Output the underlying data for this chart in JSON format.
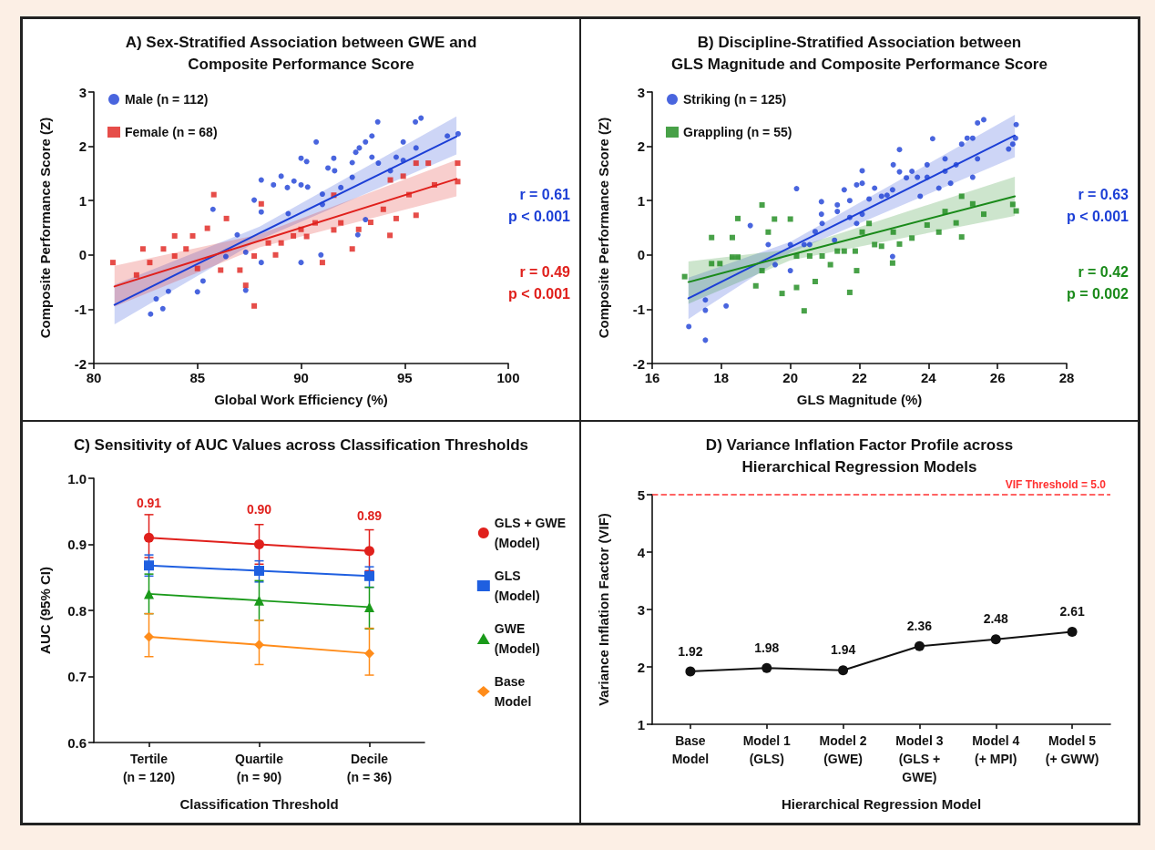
{
  "chart_data": [
    {
      "type": "scatter",
      "title": "A) Sex-Stratified Association between GWE and\nComposite Performance Score",
      "xlabel": "Global Work Efficiency (%)",
      "ylabel": "Composite Performance Score (Z)",
      "xlim": [
        80,
        100
      ],
      "xticks": [
        80,
        85,
        90,
        95,
        100
      ],
      "ylim": [
        -2,
        3
      ],
      "yticks": [
        -2,
        -1,
        0,
        1,
        2,
        3
      ],
      "legend": "top left",
      "annotations": [
        "r = 0.61\np < 0.001",
        "r = 0.49\np < 0.001"
      ],
      "series": [
        {
          "name": "Male (n = 112)",
          "color": "#1c3fd6",
          "marker": "circle",
          "x": [
            82.74,
            83.01,
            83.33,
            83.6,
            85.0,
            85.27,
            85.75,
            87.33,
            87.74,
            88.08,
            88.67,
            89.04,
            89.34,
            89.66,
            90.0,
            90.27,
            90.0,
            90.32,
            90.73,
            91.03,
            91.3,
            91.58,
            91.62,
            91.92,
            92.47,
            92.47,
            92.64,
            92.81,
            93.11,
            93.42,
            93.7,
            93.42,
            93.73,
            94.31,
            94.59,
            94.93,
            94.93,
            95.52,
            95.79,
            95.55,
            97.06,
            97.58,
            93.11,
            92.74,
            90.96,
            90.0,
            88.08,
            88.08,
            87.33,
            86.37,
            86.92,
            89.38,
            91.03
          ],
          "values": [
            -1.09,
            -0.81,
            -0.99,
            -0.67,
            -0.68,
            -0.48,
            0.84,
            -0.65,
            1.01,
            1.38,
            1.29,
            1.45,
            1.24,
            1.36,
            1.78,
            1.72,
            1.29,
            1.25,
            2.08,
            1.12,
            1.6,
            1.78,
            1.55,
            1.24,
            1.7,
            1.43,
            1.89,
            1.97,
            2.08,
            2.19,
            2.45,
            1.8,
            1.69,
            1.55,
            1.8,
            2.08,
            1.74,
            2.45,
            2.52,
            1.97,
            2.19,
            2.23,
            0.65,
            0.37,
            0.0,
            -0.14,
            -0.14,
            0.79,
            0.05,
            -0.03,
            0.37,
            0.76,
            0.93
          ]
        },
        {
          "name": "Female (n = 68)",
          "color": "#e0201c",
          "marker": "square",
          "x": [
            80.92,
            82.06,
            82.37,
            82.7,
            83.36,
            83.9,
            83.9,
            84.45,
            84.77,
            85.0,
            85.79,
            85.48,
            86.4,
            86.12,
            87.05,
            87.33,
            87.74,
            87.74,
            88.08,
            88.42,
            88.77,
            89.04,
            89.63,
            90.0,
            90.27,
            90.68,
            91.03,
            91.58,
            91.92,
            92.47,
            92.78,
            93.36,
            93.97,
            94.29,
            94.31,
            94.59,
            94.93,
            95.21,
            95.55,
            96.14,
            96.44,
            97.56,
            97.56,
            95.55,
            91.58
          ],
          "values": [
            -0.14,
            -0.37,
            0.11,
            -0.14,
            0.11,
            0.35,
            -0.02,
            0.11,
            0.35,
            -0.25,
            1.11,
            0.49,
            0.67,
            -0.28,
            -0.28,
            -0.56,
            -0.94,
            -0.02,
            0.94,
            0.22,
            0.0,
            0.22,
            0.35,
            0.47,
            0.34,
            0.59,
            -0.14,
            0.46,
            0.59,
            0.11,
            0.47,
            0.6,
            0.84,
            0.36,
            1.38,
            0.67,
            1.45,
            1.11,
            0.73,
            1.69,
            1.29,
            1.69,
            1.35,
            1.69,
            1.1
          ]
        },
        {
          "type": "line",
          "color": "#1c3fd6",
          "marker": "none",
          "x": [
            81,
            88,
            97.5
          ],
          "values": [
            -0.92,
            0.4,
            2.18
          ],
          "lower": [
            -1.28,
            0.28,
            1.85
          ],
          "upper": [
            -0.55,
            0.52,
            2.55
          ]
        },
        {
          "type": "line",
          "color": "#e0201c",
          "marker": "none",
          "x": [
            81,
            88,
            97.5
          ],
          "values": [
            -0.58,
            0.26,
            1.4
          ],
          "lower": [
            -0.95,
            0.14,
            1.08
          ],
          "upper": [
            -0.2,
            0.38,
            1.75
          ]
        }
      ]
    },
    {
      "type": "scatter",
      "title": "B) Discipline-Stratified Association between\nGLS Magnitude and Composite Performance Score",
      "xlabel": "GLS Magnitude (%)",
      "ylabel": "Composite Performance Score (Z)",
      "xlim": [
        16,
        28
      ],
      "xticks": [
        16,
        18,
        20,
        22,
        24,
        26,
        28
      ],
      "ylim": [
        -2,
        3
      ],
      "yticks": [
        -2,
        -1,
        0,
        1,
        2,
        3
      ],
      "legend": "top left",
      "annotations": [
        "r = 0.63\np < 0.001",
        "r = 0.42\np = 0.002"
      ],
      "series": [
        {
          "name": "Striking (n = 125)",
          "color": "#1c3fd6",
          "marker": "circle",
          "x": [
            17.06,
            17.54,
            17.54,
            17.54,
            18.14,
            18.84,
            19.36,
            19.56,
            20.0,
            20.18,
            20.4,
            20.56,
            20.72,
            20.9,
            20.9,
            20.92,
            21.36,
            21.36,
            21.56,
            21.72,
            21.72,
            21.92,
            22.08,
            22.08,
            22.08,
            22.28,
            22.44,
            22.64,
            22.8,
            22.96,
            22.98,
            23.16,
            23.16,
            23.36,
            23.52,
            23.68,
            23.76,
            23.96,
            24.12,
            23.96,
            24.3,
            24.48,
            24.48,
            24.64,
            24.8,
            24.96,
            25.12,
            25.28,
            25.28,
            25.42,
            25.6,
            25.42,
            26.32,
            26.44,
            26.52,
            26.54,
            22.96,
            21.92,
            21.28,
            20.0
          ],
          "values": [
            -1.32,
            -1.57,
            -1.02,
            -0.83,
            -0.94,
            0.54,
            0.19,
            -0.18,
            -0.29,
            1.22,
            0.19,
            0.19,
            0.43,
            0.98,
            0.75,
            0.58,
            0.8,
            0.92,
            1.2,
            1.0,
            0.69,
            1.29,
            1.32,
            1.55,
            0.75,
            1.03,
            1.23,
            1.08,
            1.1,
            1.2,
            1.66,
            1.94,
            1.53,
            1.42,
            1.54,
            1.43,
            1.08,
            1.66,
            2.14,
            1.43,
            1.23,
            1.77,
            1.54,
            1.32,
            1.66,
            2.04,
            2.15,
            2.15,
            1.43,
            2.43,
            2.49,
            1.77,
            1.95,
            2.04,
            2.15,
            2.4,
            -0.03,
            0.58,
            0.27,
            0.19
          ]
        },
        {
          "name": "Grappling (n = 55)",
          "color": "#1a8a1a",
          "marker": "square",
          "x": [
            16.94,
            17.72,
            17.96,
            17.72,
            18.32,
            18.32,
            18.48,
            18.48,
            19.0,
            19.18,
            19.18,
            19.36,
            19.54,
            19.76,
            20.0,
            20.18,
            20.18,
            20.4,
            20.56,
            20.72,
            20.92,
            21.16,
            21.36,
            21.56,
            21.72,
            21.88,
            21.92,
            22.08,
            22.28,
            22.44,
            22.64,
            22.96,
            22.98,
            23.16,
            23.52,
            23.96,
            24.3,
            24.48,
            24.8,
            24.96,
            24.96,
            25.28,
            25.6,
            26.44,
            26.54
          ],
          "values": [
            -0.4,
            -0.16,
            -0.16,
            0.32,
            0.32,
            -0.04,
            -0.04,
            0.67,
            -0.57,
            0.92,
            -0.29,
            0.42,
            0.66,
            -0.71,
            0.66,
            -0.02,
            -0.6,
            -1.03,
            -0.02,
            -0.49,
            -0.02,
            -0.18,
            0.07,
            0.07,
            -0.69,
            0.07,
            -0.29,
            0.42,
            0.58,
            0.19,
            0.16,
            -0.15,
            0.42,
            0.2,
            0.31,
            0.55,
            0.42,
            0.8,
            0.59,
            0.33,
            1.08,
            0.94,
            0.75,
            0.93,
            0.81
          ]
        },
        {
          "type": "line",
          "color": "#1c3fd6",
          "marker": "none",
          "x": [
            17.05,
            20,
            26.5
          ],
          "values": [
            -0.8,
            0.14,
            2.2
          ],
          "lower": [
            -1.18,
            0.04,
            1.8
          ],
          "upper": [
            -0.42,
            0.24,
            2.58
          ]
        },
        {
          "type": "line",
          "color": "#1a8a1a",
          "marker": "none",
          "x": [
            17.05,
            20,
            26.5
          ],
          "values": [
            -0.5,
            0.0,
            1.08
          ],
          "lower": [
            -0.9,
            -0.1,
            0.72
          ],
          "upper": [
            -0.12,
            0.1,
            1.44
          ]
        }
      ]
    },
    {
      "type": "line",
      "title": "C) Sensitivity of AUC Values across Classification Thresholds",
      "xlabel": "Classification Threshold",
      "ylabel": "AUC (95% CI)",
      "categories": [
        "Tertile\n(n = 120)",
        "Quartile\n(n = 90)",
        "Decile\n(n = 36)"
      ],
      "ylim": [
        0.6,
        1.0
      ],
      "yticks": [
        0.6,
        0.7,
        0.8,
        0.9,
        {
          "value": 1.0,
          "label": "1.0"
        }
      ],
      "legend": "right",
      "series": [
        {
          "name": "GLS + GWE\n(Model)",
          "color": "#e0201c",
          "marker": "circle",
          "values": [
            0.91,
            0.9,
            0.89
          ],
          "errors": [
            [
              0.88,
              0.945
            ],
            [
              0.87,
              0.93
            ],
            [
              0.86,
              0.922
            ]
          ],
          "value_labels": [
            "0.91",
            "0.90",
            "0.89"
          ]
        },
        {
          "name": "GLS\n(Model)",
          "color": "#1f5fe0",
          "marker": "square",
          "values": [
            0.868,
            0.86,
            0.852
          ],
          "errors": [
            [
              0.852,
              0.884
            ],
            [
              0.843,
              0.875
            ],
            [
              0.835,
              0.866
            ]
          ]
        },
        {
          "name": "GWE\n(Model)",
          "color": "#1a9a1a",
          "marker": "triangle",
          "values": [
            0.825,
            0.815,
            0.805
          ],
          "errors": [
            [
              0.795,
              0.855
            ],
            [
              0.785,
              0.845
            ],
            [
              0.772,
              0.835
            ]
          ]
        },
        {
          "name": "Base\nModel",
          "color": "#ff8c1a",
          "marker": "diamond",
          "values": [
            0.76,
            0.748,
            0.735
          ],
          "errors": [
            [
              0.73,
              0.795
            ],
            [
              0.718,
              0.785
            ],
            [
              0.702,
              0.773
            ]
          ]
        }
      ]
    },
    {
      "type": "line",
      "title": "D) Variance Inflation Factor Profile across\nHierarchical Regression Models",
      "xlabel": "Hierarchical Regression Model",
      "ylabel": "Variance Inflation Factor (VIF)",
      "categories": [
        "Base\nModel",
        "Model 1\n(GLS)",
        "Model 2\n(GWE)",
        "Model 3\n(GLS +\nGWE)",
        "Model 4\n(+ MPI)",
        "Model 5\n(+ GWW)"
      ],
      "ylim": [
        1,
        5
      ],
      "yticks": [
        1,
        2,
        3,
        4,
        5
      ],
      "marker": "circle",
      "data_labels": true,
      "values": [
        1.92,
        1.98,
        1.94,
        2.36,
        2.48,
        2.61
      ],
      "color": "#111111",
      "ref_lines": [
        {
          "axis": "y",
          "value": 5.0,
          "label": "VIF Threshold = 5.0",
          "color": "#ff3030",
          "line_style": "dashed"
        }
      ]
    }
  ]
}
